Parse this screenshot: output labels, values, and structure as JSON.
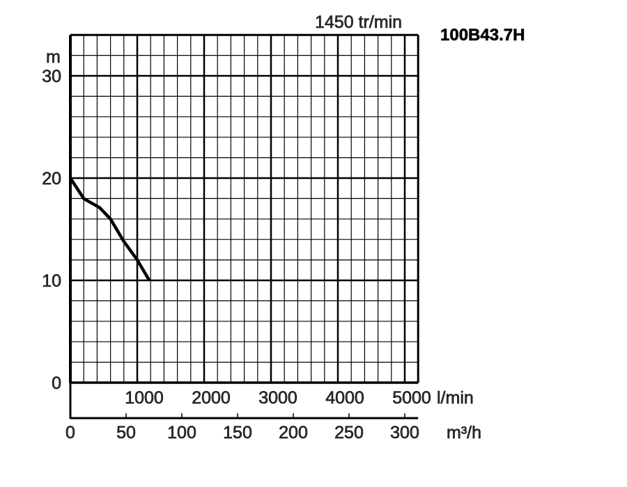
{
  "chart_data": {
    "type": "line",
    "title": "100B43.7H",
    "speed_label": "1450 tr/min",
    "ylabel": "m",
    "xlabel_primary": "l/min",
    "xlabel_secondary": "m³/h",
    "ylim": [
      0,
      34
    ],
    "xlim": [
      0,
      5200
    ],
    "y_ticks": [
      "0",
      "10",
      "20",
      "30"
    ],
    "x_ticks_lmin": [
      "1000",
      "2000",
      "3000",
      "4000",
      "5000"
    ],
    "x_ticks_m3h": [
      "0",
      "50",
      "100",
      "150",
      "200",
      "250",
      "300"
    ],
    "grid": true,
    "series": [
      {
        "x": [
          0,
          200,
          440,
          600,
          800,
          1000,
          1180
        ],
        "y": [
          20,
          18,
          17.1,
          16,
          13.8,
          12,
          10
        ]
      }
    ]
  }
}
